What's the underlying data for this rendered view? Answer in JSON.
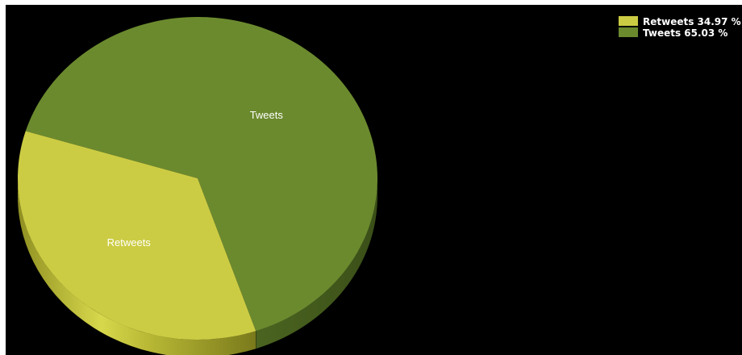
{
  "chart_data": {
    "type": "pie",
    "title": "",
    "slices": [
      {
        "label": "Retweets",
        "value": 34.97,
        "color": "#cccc44",
        "legend": "Retweets 34.97 %"
      },
      {
        "label": "Tweets",
        "value": 65.03,
        "color": "#6b8a2e",
        "legend": "Tweets 65.03 %"
      }
    ],
    "legend_position": "top-right",
    "style": "3d",
    "background": "#000000"
  }
}
